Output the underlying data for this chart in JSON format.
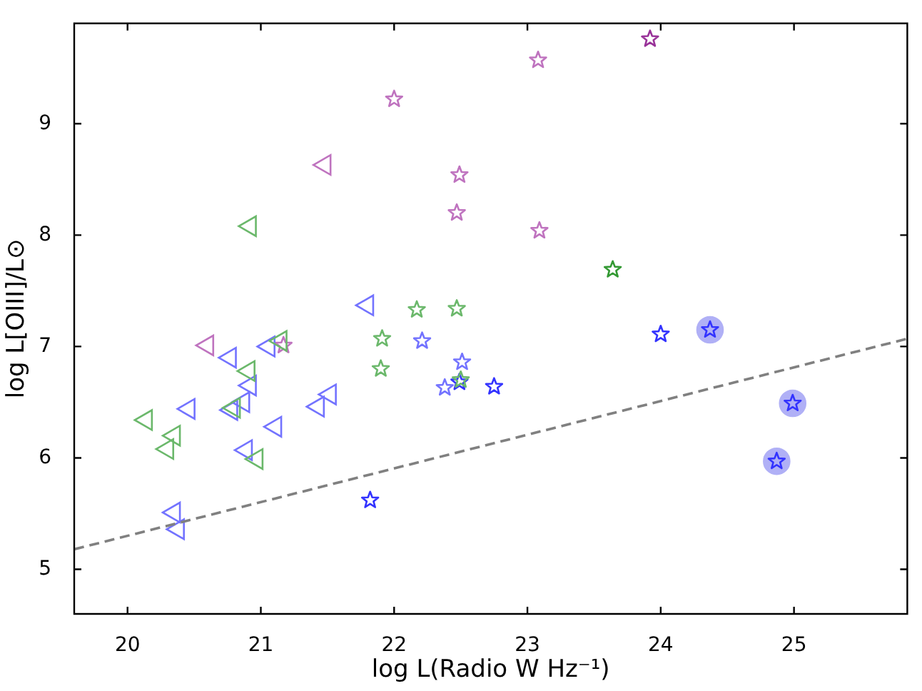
{
  "chart_data": {
    "type": "scatter",
    "xlabel": "log L(Radio W Hz⁻¹)",
    "ylabel": "log L[OIII]/L⊙",
    "xlim": [
      19.6,
      25.85
    ],
    "ylim": [
      4.6,
      9.9
    ],
    "xticks": [
      20,
      21,
      22,
      23,
      24,
      25
    ],
    "yticks": [
      5,
      6,
      7,
      8,
      9
    ],
    "series": [
      {
        "type": "scatter",
        "marker": "circle",
        "color": "#b0b0f6",
        "x": [
          24.37,
          24.99,
          24.87
        ],
        "values": [
          7.15,
          6.49,
          5.97
        ]
      },
      {
        "type": "scatter",
        "marker": "triangle",
        "color": "#6bb86b",
        "x": [
          20.92,
          20.14,
          20.35,
          20.3,
          20.91,
          20.8,
          20.97,
          21.15
        ],
        "values": [
          8.08,
          6.34,
          6.2,
          6.08,
          6.78,
          6.45,
          5.99,
          7.05
        ]
      },
      {
        "type": "scatter",
        "marker": "triangle",
        "color": "#7373ff",
        "x": [
          21.8,
          21.06,
          20.77,
          20.92,
          20.46,
          20.78,
          20.87,
          21.11,
          21.43,
          21.52,
          20.89,
          20.35,
          20.38
        ],
        "values": [
          7.37,
          7.0,
          6.9,
          6.65,
          6.44,
          6.43,
          6.5,
          6.28,
          6.46,
          6.57,
          6.07,
          5.51,
          5.36
        ]
      },
      {
        "type": "scatter",
        "marker": "triangle",
        "color": "#bf73bf",
        "x": [
          21.48,
          20.6
        ],
        "values": [
          8.63,
          7.01
        ]
      },
      {
        "type": "scatter",
        "marker": "star",
        "color": "#6bb86b",
        "x": [
          21.91,
          21.9,
          22.17,
          22.47,
          22.5
        ],
        "values": [
          7.07,
          6.8,
          7.33,
          7.34,
          6.7
        ]
      },
      {
        "type": "scatter",
        "marker": "star",
        "color": "#7373ff",
        "x": [
          22.21,
          22.51,
          22.38
        ],
        "values": [
          7.05,
          6.86,
          6.63
        ]
      },
      {
        "type": "scatter",
        "marker": "star",
        "color": "#bf73bf",
        "x": [
          21.17,
          22.0,
          23.08,
          22.49,
          22.47,
          23.09
        ],
        "values": [
          7.01,
          9.22,
          9.57,
          8.54,
          8.2,
          8.04
        ]
      },
      {
        "type": "scatter",
        "marker": "star",
        "color": "#3333ff",
        "x": [
          22.49,
          22.75,
          24.0,
          24.37,
          24.99,
          24.87,
          21.82
        ],
        "values": [
          6.68,
          6.64,
          7.11,
          7.15,
          6.49,
          5.97,
          5.62
        ]
      },
      {
        "type": "scatter",
        "marker": "star",
        "color": "#339933",
        "x": [
          23.64
        ],
        "values": [
          7.69
        ]
      },
      {
        "type": "scatter",
        "marker": "star",
        "color": "#993399",
        "x": [
          23.92
        ],
        "values": [
          9.76
        ]
      },
      {
        "type": "line",
        "marker": "none",
        "line_style": "dashed",
        "color": "#808080",
        "x": [
          19.6,
          25.85
        ],
        "values": [
          5.18,
          7.07
        ]
      }
    ]
  }
}
